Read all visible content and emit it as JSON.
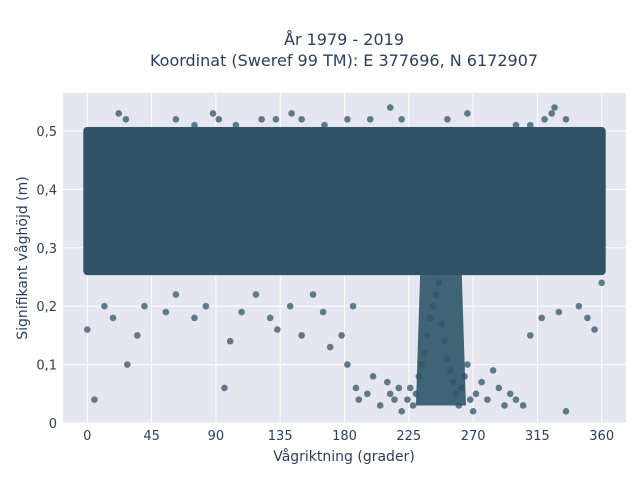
{
  "chart_data": {
    "type": "scatter",
    "title_lines": [
      "År 1979 - 2019",
      "Koordinat (Sweref 99 TM): E 377696, N 6172907"
    ],
    "xlabel": "Vågriktning (grader)",
    "ylabel": "Signifikant våghöjd (m)",
    "xlim": [
      -17,
      377
    ],
    "ylim": [
      0,
      0.565
    ],
    "xticks": [
      0,
      45,
      90,
      135,
      180,
      225,
      270,
      315,
      360
    ],
    "xtick_labels": [
      "0",
      "45",
      "90",
      "135",
      "180",
      "225",
      "270",
      "315",
      "360"
    ],
    "yticks": [
      0,
      0.1,
      0.2,
      0.3,
      0.4,
      0.5
    ],
    "ytick_labels": [
      "0",
      "0,1",
      "0,2",
      "0,3",
      "0,4",
      "0,5"
    ],
    "grid": true,
    "marker_color": "#2f5468",
    "background_color": "#e5e6ef",
    "dense_band": {
      "x_range": [
        0,
        360
      ],
      "y_range": [
        0.26,
        0.5
      ]
    },
    "points": [
      [
        5,
        0.04
      ],
      [
        28,
        0.1
      ],
      [
        96,
        0.06
      ],
      [
        0,
        0.16
      ],
      [
        12,
        0.2
      ],
      [
        18,
        0.18
      ],
      [
        35,
        0.15
      ],
      [
        40,
        0.2
      ],
      [
        55,
        0.19
      ],
      [
        62,
        0.22
      ],
      [
        75,
        0.18
      ],
      [
        83,
        0.2
      ],
      [
        100,
        0.14
      ],
      [
        108,
        0.19
      ],
      [
        118,
        0.22
      ],
      [
        128,
        0.18
      ],
      [
        133,
        0.16
      ],
      [
        142,
        0.2
      ],
      [
        150,
        0.15
      ],
      [
        158,
        0.22
      ],
      [
        165,
        0.19
      ],
      [
        170,
        0.13
      ],
      [
        178,
        0.15
      ],
      [
        182,
        0.1
      ],
      [
        186,
        0.2
      ],
      [
        188,
        0.06
      ],
      [
        190,
        0.04
      ],
      [
        196,
        0.05
      ],
      [
        200,
        0.08
      ],
      [
        205,
        0.03
      ],
      [
        210,
        0.07
      ],
      [
        212,
        0.05
      ],
      [
        215,
        0.04
      ],
      [
        218,
        0.06
      ],
      [
        220,
        0.02
      ],
      [
        224,
        0.04
      ],
      [
        226,
        0.06
      ],
      [
        228,
        0.03
      ],
      [
        230,
        0.05
      ],
      [
        232,
        0.08
      ],
      [
        234,
        0.1
      ],
      [
        236,
        0.12
      ],
      [
        238,
        0.15
      ],
      [
        240,
        0.18
      ],
      [
        242,
        0.2
      ],
      [
        244,
        0.22
      ],
      [
        246,
        0.24
      ],
      [
        248,
        0.17
      ],
      [
        250,
        0.14
      ],
      [
        252,
        0.11
      ],
      [
        254,
        0.09
      ],
      [
        256,
        0.07
      ],
      [
        258,
        0.05
      ],
      [
        260,
        0.03
      ],
      [
        262,
        0.06
      ],
      [
        264,
        0.08
      ],
      [
        266,
        0.1
      ],
      [
        268,
        0.04
      ],
      [
        270,
        0.02
      ],
      [
        272,
        0.05
      ],
      [
        276,
        0.07
      ],
      [
        280,
        0.04
      ],
      [
        284,
        0.09
      ],
      [
        288,
        0.06
      ],
      [
        292,
        0.03
      ],
      [
        296,
        0.05
      ],
      [
        300,
        0.04
      ],
      [
        305,
        0.03
      ],
      [
        310,
        0.15
      ],
      [
        318,
        0.18
      ],
      [
        330,
        0.19
      ],
      [
        335,
        0.02
      ],
      [
        344,
        0.2
      ],
      [
        350,
        0.18
      ],
      [
        355,
        0.16
      ],
      [
        360,
        0.24
      ],
      [
        22,
        0.53
      ],
      [
        27,
        0.52
      ],
      [
        62,
        0.52
      ],
      [
        75,
        0.51
      ],
      [
        88,
        0.53
      ],
      [
        92,
        0.52
      ],
      [
        104,
        0.51
      ],
      [
        122,
        0.52
      ],
      [
        132,
        0.52
      ],
      [
        143,
        0.53
      ],
      [
        150,
        0.52
      ],
      [
        166,
        0.51
      ],
      [
        182,
        0.52
      ],
      [
        198,
        0.52
      ],
      [
        212,
        0.54
      ],
      [
        220,
        0.52
      ],
      [
        252,
        0.52
      ],
      [
        266,
        0.53
      ],
      [
        300,
        0.51
      ],
      [
        310,
        0.51
      ],
      [
        320,
        0.52
      ],
      [
        325,
        0.53
      ],
      [
        327,
        0.54
      ],
      [
        335,
        0.52
      ]
    ]
  }
}
